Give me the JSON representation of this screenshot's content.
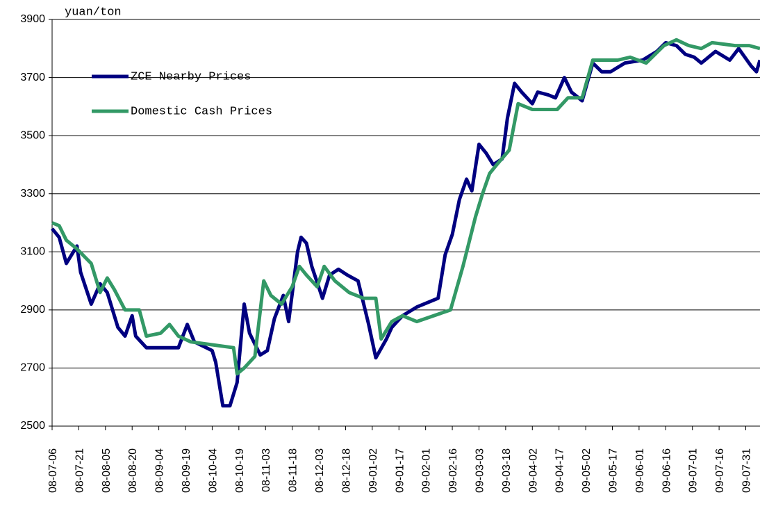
{
  "chart_data": {
    "type": "line",
    "y_label": "yuan/ton",
    "ylim": [
      2500,
      3900
    ],
    "yticks": [
      2500,
      2700,
      2900,
      3100,
      3300,
      3500,
      3700,
      3900
    ],
    "xlim": [
      "08-07-06",
      "09-08-08"
    ],
    "xticks": [
      "08-07-06",
      "08-07-21",
      "08-08-05",
      "08-08-20",
      "08-09-04",
      "08-09-19",
      "08-10-04",
      "08-10-19",
      "08-11-03",
      "08-11-18",
      "08-12-03",
      "08-12-18",
      "09-01-02",
      "09-01-17",
      "09-02-01",
      "09-02-16",
      "09-03-03",
      "09-03-18",
      "09-04-02",
      "09-04-17",
      "09-05-02",
      "09-05-17",
      "09-06-01",
      "09-06-16",
      "09-07-01",
      "09-07-16",
      "09-07-31"
    ],
    "grid": true,
    "legend": "upper left",
    "series": [
      {
        "name": "ZCE Nearby Prices",
        "color": "#000080",
        "x": [
          "08-07-06",
          "08-07-10",
          "08-07-14",
          "08-07-20",
          "08-07-22",
          "08-07-28",
          "08-08-02",
          "08-08-06",
          "08-08-12",
          "08-08-16",
          "08-08-20",
          "08-08-22",
          "08-08-28",
          "08-09-05",
          "08-09-10",
          "08-09-15",
          "08-09-20",
          "08-09-24",
          "08-10-04",
          "08-10-06",
          "08-10-10",
          "08-10-14",
          "08-10-18",
          "08-10-22",
          "08-10-25",
          "08-10-31",
          "08-11-04",
          "08-11-08",
          "08-11-13",
          "08-11-16",
          "08-11-21",
          "08-11-23",
          "08-11-26",
          "08-11-29",
          "08-12-05",
          "08-12-09",
          "08-12-14",
          "08-12-19",
          "08-12-25",
          "08-12-31",
          "09-01-04",
          "09-01-10",
          "09-01-13",
          "09-01-19",
          "09-01-27",
          "09-02-08",
          "09-02-12",
          "09-02-16",
          "09-02-20",
          "09-02-24",
          "09-02-27",
          "09-03-03",
          "09-03-07",
          "09-03-11",
          "09-03-16",
          "09-03-19",
          "09-03-23",
          "09-03-27",
          "09-04-02",
          "09-04-05",
          "09-04-11",
          "09-04-15",
          "09-04-20",
          "09-04-24",
          "09-04-30",
          "09-05-06",
          "09-05-11",
          "09-05-16",
          "09-05-24",
          "09-06-03",
          "09-06-11",
          "09-06-16",
          "09-06-22",
          "09-06-27",
          "09-07-02",
          "09-07-06",
          "09-07-14",
          "09-07-22",
          "09-07-27",
          "09-08-03",
          "09-08-06",
          "09-08-08"
        ],
        "values": [
          3180,
          3150,
          3060,
          3120,
          3030,
          2920,
          2990,
          2960,
          2840,
          2810,
          2880,
          2810,
          2770,
          2770,
          2770,
          2770,
          2850,
          2790,
          2760,
          2720,
          2570,
          2570,
          2650,
          2920,
          2820,
          2745,
          2760,
          2870,
          2950,
          2860,
          3100,
          3150,
          3130,
          3050,
          2940,
          3020,
          3040,
          3020,
          3000,
          2850,
          2735,
          2800,
          2840,
          2880,
          2910,
          2940,
          3090,
          3160,
          3280,
          3350,
          3310,
          3470,
          3440,
          3400,
          3420,
          3560,
          3680,
          3650,
          3610,
          3650,
          3640,
          3630,
          3700,
          3650,
          3620,
          3750,
          3720,
          3720,
          3750,
          3760,
          3790,
          3820,
          3810,
          3780,
          3770,
          3750,
          3790,
          3760,
          3800,
          3740,
          3720,
          3760
        ]
      },
      {
        "name": "Domestic Cash Prices",
        "color": "#339966",
        "x": [
          "08-07-06",
          "08-07-10",
          "08-07-14",
          "08-07-20",
          "08-07-28",
          "08-08-02",
          "08-08-06",
          "08-08-10",
          "08-08-16",
          "08-08-24",
          "08-08-28",
          "08-09-05",
          "08-09-10",
          "08-09-15",
          "08-09-22",
          "08-10-04",
          "08-10-16",
          "08-10-18",
          "08-10-22",
          "08-10-28",
          "08-11-02",
          "08-11-06",
          "08-11-12",
          "08-11-18",
          "08-11-22",
          "08-11-26",
          "08-12-02",
          "08-12-06",
          "08-12-12",
          "08-12-20",
          "08-12-28",
          "09-01-04",
          "09-01-07",
          "09-01-13",
          "09-01-19",
          "09-01-27",
          "09-02-15",
          "09-02-22",
          "09-03-01",
          "09-03-05",
          "09-03-09",
          "09-03-13",
          "09-03-20",
          "09-03-25",
          "09-04-02",
          "09-04-16",
          "09-04-22",
          "09-04-30",
          "09-05-06",
          "09-05-20",
          "09-05-27",
          "09-06-05",
          "09-06-15",
          "09-06-22",
          "09-06-29",
          "09-07-06",
          "09-07-12",
          "09-07-25",
          "09-08-02",
          "09-08-08"
        ],
        "values": [
          3200,
          3190,
          3140,
          3110,
          3060,
          2960,
          3010,
          2970,
          2900,
          2900,
          2810,
          2820,
          2850,
          2810,
          2790,
          2780,
          2770,
          2680,
          2700,
          2740,
          3000,
          2950,
          2920,
          2980,
          3050,
          3020,
          2980,
          3050,
          3000,
          2960,
          2940,
          2940,
          2800,
          2860,
          2880,
          2860,
          2900,
          3050,
          3220,
          3300,
          3370,
          3400,
          3450,
          3610,
          3590,
          3590,
          3630,
          3630,
          3760,
          3760,
          3770,
          3750,
          3810,
          3830,
          3810,
          3800,
          3820,
          3810,
          3810,
          3800
        ]
      }
    ]
  }
}
